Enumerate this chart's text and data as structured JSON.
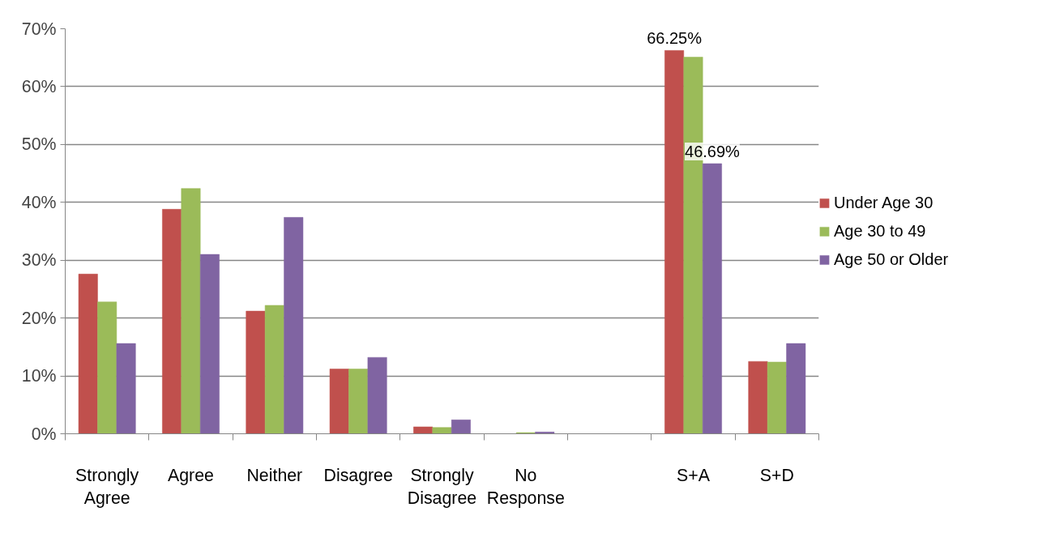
{
  "chart_data": {
    "type": "bar",
    "categories": [
      "Strongly Agree",
      "Agree",
      "Neither",
      "Disagree",
      "Strongly Disagree",
      "No Response",
      null,
      "S+A",
      "S+D"
    ],
    "series": [
      {
        "name": "Under Age 30",
        "color": "#c0504d",
        "values": [
          27.6,
          38.8,
          21.2,
          11.2,
          1.2,
          0,
          null,
          66.25,
          12.5
        ],
        "value_labels": [
          null,
          null,
          null,
          null,
          null,
          null,
          null,
          "66.25%",
          null
        ]
      },
      {
        "name": "Age 30 to 49",
        "color": "#9bbb59",
        "values": [
          22.8,
          42.4,
          22.2,
          11.2,
          1.1,
          0.2,
          null,
          65.1,
          12.4
        ]
      },
      {
        "name": "Age 50 or Older",
        "color": "#8064a2",
        "values": [
          15.6,
          31.0,
          37.4,
          13.2,
          2.4,
          0.3,
          null,
          46.69,
          15.6
        ],
        "value_labels": [
          null,
          null,
          null,
          null,
          null,
          null,
          null,
          "46.69%",
          null
        ]
      }
    ],
    "ylim": [
      0,
      70
    ],
    "yticks": [
      {
        "value": 0,
        "label": "0%"
      },
      {
        "value": 10,
        "label": "10%"
      },
      {
        "value": 20,
        "label": "20%"
      },
      {
        "value": 30,
        "label": "30%"
      },
      {
        "value": 40,
        "label": "40%"
      },
      {
        "value": 50,
        "label": "50%"
      },
      {
        "value": 60,
        "label": "60%"
      },
      {
        "value": 70,
        "label": "70%"
      }
    ],
    "grid": "y",
    "legend": "right"
  }
}
